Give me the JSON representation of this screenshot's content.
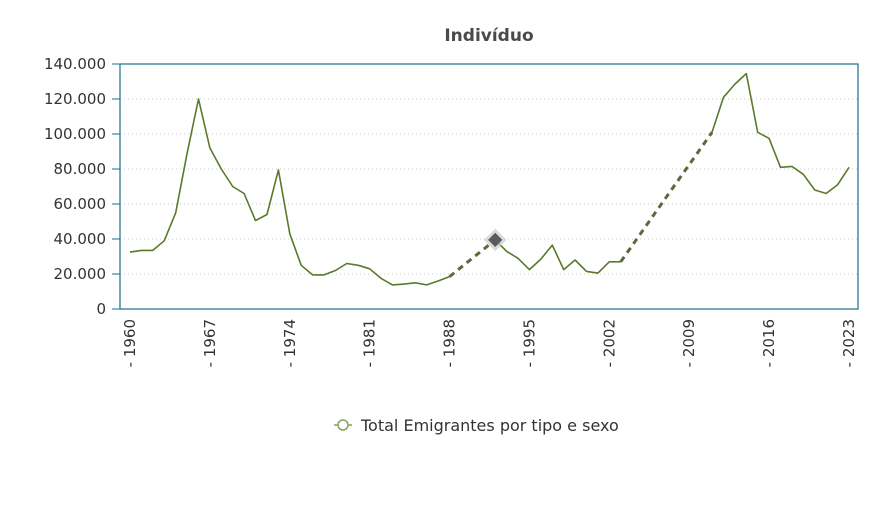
{
  "chart_data": {
    "type": "line",
    "title": "Indivíduo",
    "xlabel": "",
    "ylabel": "",
    "xlim": [
      1960,
      2023
    ],
    "ylim": [
      0,
      140000
    ],
    "yticks": [
      0,
      20000,
      40000,
      60000,
      80000,
      100000,
      120000,
      140000
    ],
    "ytick_labels": [
      "0",
      "20.000",
      "40.000",
      "60.000",
      "80.000",
      "100.000",
      "120.000",
      "140.000"
    ],
    "xticks": [
      1960,
      1967,
      1974,
      1981,
      1988,
      1995,
      2002,
      2009,
      2016,
      2023
    ],
    "xtick_labels": [
      "- 1960",
      "- 1967",
      "- 1974",
      "- 1981",
      "- 1988",
      "- 1995",
      "- 2002",
      "- 2009",
      "- 2016",
      "- 2023"
    ],
    "grid": true,
    "legend_position": "bottom",
    "series": [
      {
        "name": "Total Emigrantes por tipo e sexo",
        "color": "#5a7a2a",
        "points": [
          [
            1960,
            32500
          ],
          [
            1961,
            33500
          ],
          [
            1962,
            33500
          ],
          [
            1963,
            39000
          ],
          [
            1964,
            55000
          ],
          [
            1965,
            89000
          ],
          [
            1966,
            120000
          ],
          [
            1967,
            92000
          ],
          [
            1968,
            80000
          ],
          [
            1969,
            70000
          ],
          [
            1970,
            66000
          ],
          [
            1971,
            50500
          ],
          [
            1972,
            54000
          ],
          [
            1973,
            79500
          ],
          [
            1974,
            43000
          ],
          [
            1975,
            25000
          ],
          [
            1976,
            19500
          ],
          [
            1977,
            19500
          ],
          [
            1978,
            22000
          ],
          [
            1979,
            26000
          ],
          [
            1980,
            25000
          ],
          [
            1981,
            23000
          ],
          [
            1982,
            17500
          ],
          [
            1983,
            13800
          ],
          [
            1984,
            14200
          ],
          [
            1985,
            15000
          ],
          [
            1986,
            13800
          ],
          [
            1987,
            16000
          ],
          [
            1988,
            18500
          ],
          [
            1992,
            39500
          ],
          [
            1993,
            33000
          ],
          [
            1994,
            29000
          ],
          [
            1995,
            22500
          ],
          [
            1996,
            28500
          ],
          [
            1997,
            36500
          ],
          [
            1998,
            22500
          ],
          [
            1999,
            28000
          ],
          [
            2000,
            21500
          ],
          [
            2001,
            20500
          ],
          [
            2002,
            27000
          ],
          [
            2003,
            27000
          ],
          [
            2011,
            101000
          ],
          [
            2012,
            121000
          ],
          [
            2013,
            128500
          ],
          [
            2014,
            134500
          ],
          [
            2015,
            101000
          ],
          [
            2016,
            97500
          ],
          [
            2017,
            81000
          ],
          [
            2018,
            81500
          ],
          [
            2019,
            77000
          ],
          [
            2020,
            68000
          ],
          [
            2021,
            66000
          ],
          [
            2022,
            71000
          ],
          [
            2023,
            81000
          ]
        ],
        "highlighted_point": [
          1992,
          39500
        ]
      }
    ]
  }
}
